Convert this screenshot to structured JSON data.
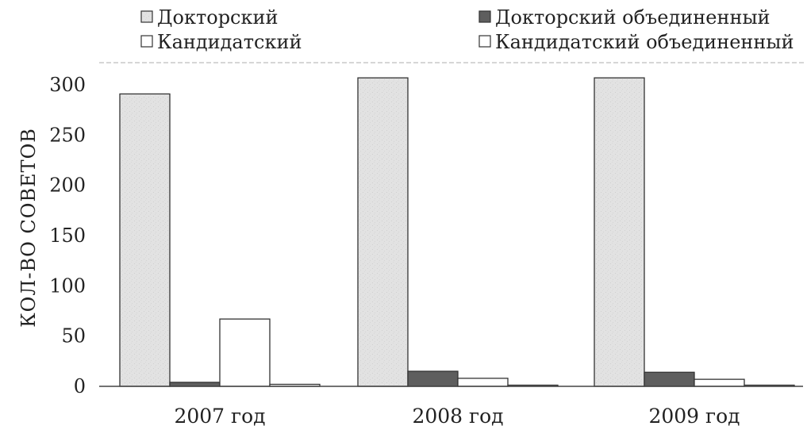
{
  "chart_data": {
    "type": "bar",
    "categories": [
      "2007 год",
      "2008 год",
      "2009 год"
    ],
    "series": [
      {
        "name": "Докторский",
        "values": [
          291,
          307,
          307
        ],
        "color": "#e2e2e2"
      },
      {
        "name": "Докторский объединенный",
        "values": [
          4,
          15,
          14
        ],
        "color": "#5e5e5e"
      },
      {
        "name": "Кандидатский",
        "values": [
          67,
          8,
          7
        ],
        "color": "#ffffff"
      },
      {
        "name": "Кандидатский объединенный",
        "values": [
          2,
          0,
          0
        ],
        "color": "#ffffff"
      }
    ],
    "ylabel": "КОЛ-ВО СОВЕТОВ",
    "ylim": [
      0,
      300
    ],
    "yticks": [
      "0",
      "50",
      "100",
      "150",
      "200",
      "250",
      "300"
    ],
    "legend_position": "top",
    "grid": false
  }
}
